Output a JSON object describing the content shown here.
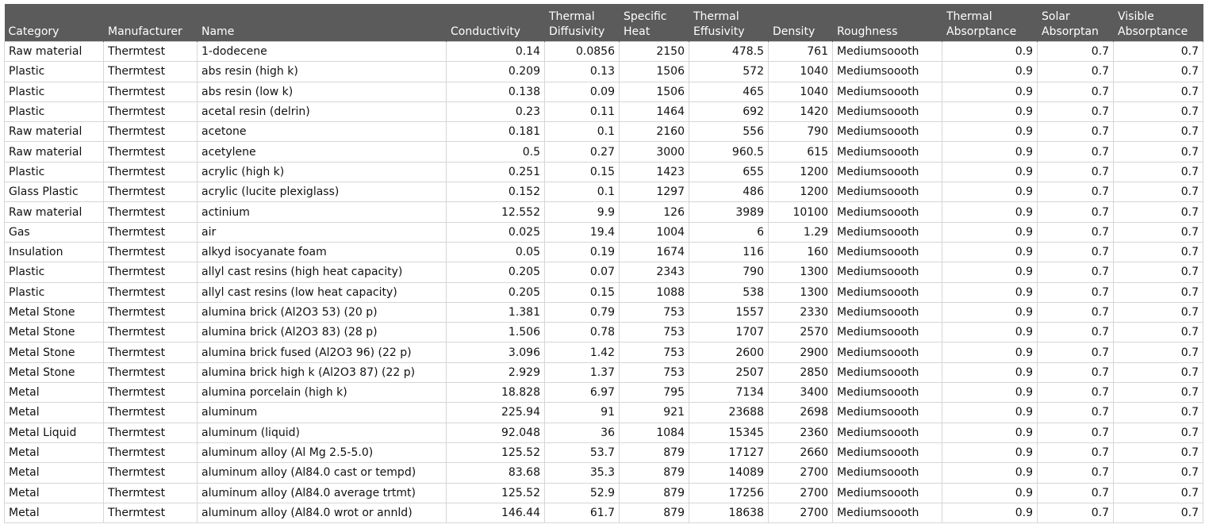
{
  "table": {
    "columns": [
      "Category",
      "Manufacturer",
      "Name",
      "Conductivity",
      "Thermal Diffusivity",
      "Specific Heat",
      "Thermal Effusivity",
      "Density",
      "Roughness",
      "Thermal Absorptance",
      "Solar Absorptan",
      "Visible Absorptance"
    ],
    "rows": [
      [
        "Raw material",
        "Thermtest",
        "1-dodecene",
        0.14,
        0.0856,
        2150,
        478.5,
        761,
        "Mediumsoooth",
        0.9,
        0.7,
        0.7
      ],
      [
        "Plastic",
        "Thermtest",
        "abs resin (high k)",
        0.209,
        0.13,
        1506,
        572,
        1040,
        "Mediumsoooth",
        0.9,
        0.7,
        0.7
      ],
      [
        "Plastic",
        "Thermtest",
        "abs resin (low k)",
        0.138,
        0.09,
        1506,
        465,
        1040,
        "Mediumsoooth",
        0.9,
        0.7,
        0.7
      ],
      [
        "Plastic",
        "Thermtest",
        "acetal resin (delrin)",
        0.23,
        0.11,
        1464,
        692,
        1420,
        "Mediumsoooth",
        0.9,
        0.7,
        0.7
      ],
      [
        "Raw material",
        "Thermtest",
        "acetone",
        0.181,
        0.1,
        2160,
        556,
        790,
        "Mediumsoooth",
        0.9,
        0.7,
        0.7
      ],
      [
        "Raw material",
        "Thermtest",
        "acetylene",
        0.5,
        0.27,
        3000,
        960.5,
        615,
        "Mediumsoooth",
        0.9,
        0.7,
        0.7
      ],
      [
        "Plastic",
        "Thermtest",
        "acrylic (high k)",
        0.251,
        0.15,
        1423,
        655,
        1200,
        "Mediumsoooth",
        0.9,
        0.7,
        0.7
      ],
      [
        "Glass Plastic",
        "Thermtest",
        "acrylic (lucite plexiglass)",
        0.152,
        0.1,
        1297,
        486,
        1200,
        "Mediumsoooth",
        0.9,
        0.7,
        0.7
      ],
      [
        "Raw material",
        "Thermtest",
        "actinium",
        12.552,
        9.9,
        126,
        3989,
        10100,
        "Mediumsoooth",
        0.9,
        0.7,
        0.7
      ],
      [
        "Gas",
        "Thermtest",
        "air",
        0.025,
        19.4,
        1004,
        6,
        1.29,
        "Mediumsoooth",
        0.9,
        0.7,
        0.7
      ],
      [
        "Insulation",
        "Thermtest",
        "alkyd isocyanate foam",
        0.05,
        0.19,
        1674,
        116,
        160,
        "Mediumsoooth",
        0.9,
        0.7,
        0.7
      ],
      [
        "Plastic",
        "Thermtest",
        "allyl cast resins (high heat capacity)",
        0.205,
        0.07,
        2343,
        790,
        1300,
        "Mediumsoooth",
        0.9,
        0.7,
        0.7
      ],
      [
        "Plastic",
        "Thermtest",
        "allyl cast resins (low heat capacity)",
        0.205,
        0.15,
        1088,
        538,
        1300,
        "Mediumsoooth",
        0.9,
        0.7,
        0.7
      ],
      [
        "Metal Stone",
        "Thermtest",
        "alumina brick (Al2O3 53) (20 p)",
        1.381,
        0.79,
        753,
        1557,
        2330,
        "Mediumsoooth",
        0.9,
        0.7,
        0.7
      ],
      [
        "Metal Stone",
        "Thermtest",
        "alumina brick (Al2O3 83) (28 p)",
        1.506,
        0.78,
        753,
        1707,
        2570,
        "Mediumsoooth",
        0.9,
        0.7,
        0.7
      ],
      [
        "Metal Stone",
        "Thermtest",
        "alumina brick fused (Al2O3 96) (22 p)",
        3.096,
        1.42,
        753,
        2600,
        2900,
        "Mediumsoooth",
        0.9,
        0.7,
        0.7
      ],
      [
        "Metal Stone",
        "Thermtest",
        "alumina brick high k (Al2O3 87) (22 p)",
        2.929,
        1.37,
        753,
        2507,
        2850,
        "Mediumsoooth",
        0.9,
        0.7,
        0.7
      ],
      [
        "Metal",
        "Thermtest",
        "alumina porcelain (high k)",
        18.828,
        6.97,
        795,
        7134,
        3400,
        "Mediumsoooth",
        0.9,
        0.7,
        0.7
      ],
      [
        "Metal",
        "Thermtest",
        "aluminum",
        225.94,
        91,
        921,
        23688,
        2698,
        "Mediumsoooth",
        0.9,
        0.7,
        0.7
      ],
      [
        "Metal Liquid",
        "Thermtest",
        "aluminum (liquid)",
        92.048,
        36,
        1084,
        15345,
        2360,
        "Mediumsoooth",
        0.9,
        0.7,
        0.7
      ],
      [
        "Metal",
        "Thermtest",
        "aluminum alloy (Al Mg 2.5-5.0)",
        125.52,
        53.7,
        879,
        17127,
        2660,
        "Mediumsoooth",
        0.9,
        0.7,
        0.7
      ],
      [
        "Metal",
        "Thermtest",
        "aluminum alloy (Al84.0 cast or tempd)",
        83.68,
        35.3,
        879,
        14089,
        2700,
        "Mediumsoooth",
        0.9,
        0.7,
        0.7
      ],
      [
        "Metal",
        "Thermtest",
        "aluminum alloy (Al84.0 average trtmt)",
        125.52,
        52.9,
        879,
        17256,
        2700,
        "Mediumsoooth",
        0.9,
        0.7,
        0.7
      ],
      [
        "Metal",
        "Thermtest",
        "aluminum alloy (Al84.0 wrot or annld)",
        146.44,
        61.7,
        879,
        18638,
        2700,
        "Mediumsoooth",
        0.9,
        0.7,
        0.7
      ]
    ]
  }
}
